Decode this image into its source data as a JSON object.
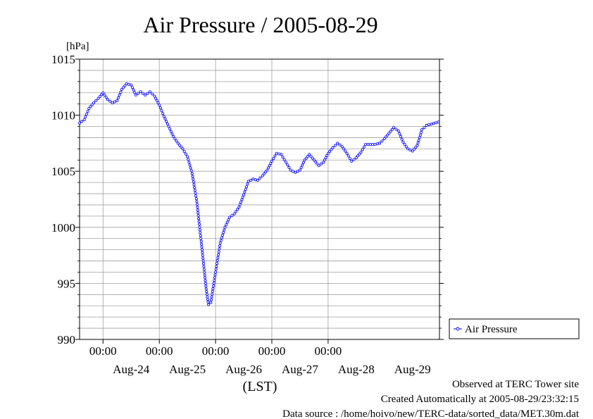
{
  "chart_data": {
    "type": "line",
    "title": "Air Pressure / 2005-08-29",
    "ylabel": "[hPa]",
    "xlabel": "(LST)",
    "ylim": [
      990,
      1015
    ],
    "x_range": [
      "2005-08-23T14:00",
      "2005-08-29T23:30"
    ],
    "grid": true,
    "y_ticks": [
      990,
      995,
      1000,
      1005,
      1010,
      1015
    ],
    "x_tick_labels": [
      {
        "x": "2005-08-24T00:00",
        "time": "00:00"
      },
      {
        "x": "2005-08-25T00:00",
        "time": "00:00"
      },
      {
        "x": "2005-08-26T00:00",
        "time": "00:00"
      },
      {
        "x": "2005-08-27T00:00",
        "time": "00:00"
      },
      {
        "x": "2005-08-28T00:00",
        "time": "00:00"
      }
    ],
    "date_labels": [
      {
        "x": "2005-08-24T12:00",
        "label": "Aug-24"
      },
      {
        "x": "2005-08-25T12:00",
        "label": "Aug-25"
      },
      {
        "x": "2005-08-26T12:00",
        "label": "Aug-26"
      },
      {
        "x": "2005-08-27T12:00",
        "label": "Aug-27"
      },
      {
        "x": "2005-08-28T12:00",
        "label": "Aug-28"
      },
      {
        "x": "2005-08-29T12:00",
        "label": "Aug-29"
      }
    ],
    "legend": {
      "position": "right",
      "label": "Air Pressure"
    },
    "series": [
      {
        "name": "Air Pressure",
        "color": "#0000ff",
        "points": [
          [
            "2005-08-23T14:00",
            1009.3
          ],
          [
            "2005-08-23T16:00",
            1009.6
          ],
          [
            "2005-08-23T18:00",
            1010.6
          ],
          [
            "2005-08-23T20:00",
            1011.1
          ],
          [
            "2005-08-23T22:00",
            1011.5
          ],
          [
            "2005-08-24T00:00",
            1012.0
          ],
          [
            "2005-08-24T02:00",
            1011.4
          ],
          [
            "2005-08-24T04:00",
            1011.1
          ],
          [
            "2005-08-24T06:00",
            1011.3
          ],
          [
            "2005-08-24T08:00",
            1012.3
          ],
          [
            "2005-08-24T10:00",
            1012.8
          ],
          [
            "2005-08-24T12:00",
            1012.7
          ],
          [
            "2005-08-24T14:00",
            1011.8
          ],
          [
            "2005-08-24T16:00",
            1012.1
          ],
          [
            "2005-08-24T18:00",
            1011.8
          ],
          [
            "2005-08-24T20:00",
            1012.1
          ],
          [
            "2005-08-24T22:00",
            1011.7
          ],
          [
            "2005-08-25T00:00",
            1010.9
          ],
          [
            "2005-08-25T02:00",
            1009.9
          ],
          [
            "2005-08-25T04:00",
            1009.0
          ],
          [
            "2005-08-25T06:00",
            1008.1
          ],
          [
            "2005-08-25T08:00",
            1007.5
          ],
          [
            "2005-08-25T10:00",
            1007.0
          ],
          [
            "2005-08-25T12:00",
            1006.3
          ],
          [
            "2005-08-25T14:00",
            1004.8
          ],
          [
            "2005-08-25T16:00",
            1002.3
          ],
          [
            "2005-08-25T18:00",
            998.5
          ],
          [
            "2005-08-25T20:00",
            994.5
          ],
          [
            "2005-08-25T21:00",
            993.1
          ],
          [
            "2005-08-25T22:00",
            993.3
          ],
          [
            "2005-08-26T00:00",
            996.0
          ],
          [
            "2005-08-26T02:00",
            998.6
          ],
          [
            "2005-08-26T04:00",
            1000.0
          ],
          [
            "2005-08-26T06:00",
            1000.9
          ],
          [
            "2005-08-26T08:00",
            1001.2
          ],
          [
            "2005-08-26T10:00",
            1001.8
          ],
          [
            "2005-08-26T12:00",
            1002.9
          ],
          [
            "2005-08-26T14:00",
            1004.1
          ],
          [
            "2005-08-26T16:00",
            1004.3
          ],
          [
            "2005-08-26T18:00",
            1004.2
          ],
          [
            "2005-08-26T20:00",
            1004.6
          ],
          [
            "2005-08-26T22:00",
            1005.1
          ],
          [
            "2005-08-27T00:00",
            1005.9
          ],
          [
            "2005-08-27T02:00",
            1006.6
          ],
          [
            "2005-08-27T04:00",
            1006.5
          ],
          [
            "2005-08-27T06:00",
            1005.8
          ],
          [
            "2005-08-27T08:00",
            1005.1
          ],
          [
            "2005-08-27T10:00",
            1004.9
          ],
          [
            "2005-08-27T12:00",
            1005.1
          ],
          [
            "2005-08-27T14:00",
            1006.0
          ],
          [
            "2005-08-27T16:00",
            1006.5
          ],
          [
            "2005-08-27T18:00",
            1006.0
          ],
          [
            "2005-08-27T20:00",
            1005.5
          ],
          [
            "2005-08-27T22:00",
            1005.8
          ],
          [
            "2005-08-28T00:00",
            1006.6
          ],
          [
            "2005-08-28T02:00",
            1007.1
          ],
          [
            "2005-08-28T04:00",
            1007.5
          ],
          [
            "2005-08-28T06:00",
            1007.2
          ],
          [
            "2005-08-28T08:00",
            1006.6
          ],
          [
            "2005-08-28T10:00",
            1005.9
          ],
          [
            "2005-08-28T12:00",
            1006.2
          ],
          [
            "2005-08-28T14:00",
            1006.7
          ],
          [
            "2005-08-28T16:00",
            1007.4
          ],
          [
            "2005-08-28T18:00",
            1007.4
          ],
          [
            "2005-08-28T20:00",
            1007.4
          ],
          [
            "2005-08-28T22:00",
            1007.5
          ],
          [
            "2005-08-29T00:00",
            1007.9
          ],
          [
            "2005-08-29T02:00",
            1008.4
          ],
          [
            "2005-08-29T04:00",
            1008.9
          ],
          [
            "2005-08-29T06:00",
            1008.6
          ],
          [
            "2005-08-29T08:00",
            1007.6
          ],
          [
            "2005-08-29T10:00",
            1007.0
          ],
          [
            "2005-08-29T12:00",
            1006.8
          ],
          [
            "2005-08-29T14:00",
            1007.3
          ],
          [
            "2005-08-29T16:00",
            1008.7
          ],
          [
            "2005-08-29T18:00",
            1009.1
          ],
          [
            "2005-08-29T20:00",
            1009.2
          ],
          [
            "2005-08-29T23:00",
            1009.4
          ]
        ]
      }
    ]
  },
  "footer": {
    "observed": "Observed at TERC Tower site",
    "created": "Created Automatically at 2005-08-29/23:32:15",
    "source": "Data source : /home/hoivo/new/TERC-data/sorted_data/MET.30m.dat"
  }
}
